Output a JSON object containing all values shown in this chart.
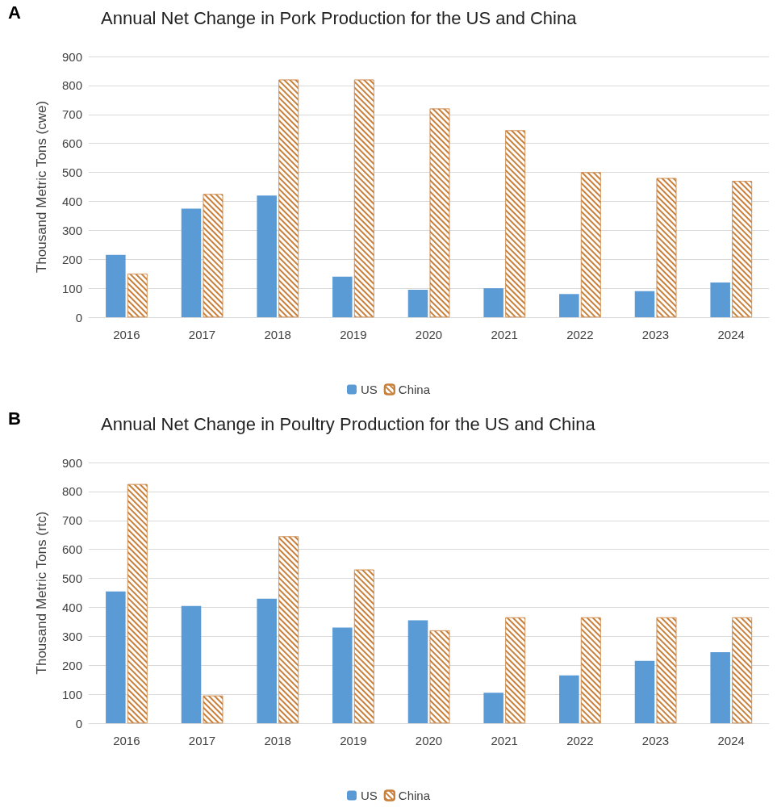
{
  "chart_data": [
    {
      "type": "bar",
      "title": "Annual Net Change in Pork Production for the US and China",
      "ylabel": "Thousand Metric Tons (cwe)",
      "annotations": [
        "A"
      ],
      "categories": [
        "2016",
        "2017",
        "2018",
        "2019",
        "2020",
        "2021",
        "2022",
        "2023",
        "2024"
      ],
      "series": [
        {
          "name": "US",
          "color": "#5b9bd5",
          "values": [
            215,
            375,
            420,
            140,
            95,
            100,
            80,
            90,
            120
          ]
        },
        {
          "name": "China",
          "color": "#c87f3a",
          "values": [
            150,
            425,
            820,
            820,
            720,
            645,
            500,
            480,
            470
          ]
        }
      ],
      "ylim": [
        0,
        900
      ],
      "yticks": [
        0,
        100,
        200,
        300,
        400,
        500,
        600,
        700,
        800,
        900
      ],
      "grid": "y",
      "legend": "bottom"
    },
    {
      "type": "bar",
      "title": "Annual Net Change in Poultry Production for the US and China",
      "ylabel": "Thousand Metric Tons (rtc)",
      "annotations": [
        "B"
      ],
      "categories": [
        "2016",
        "2017",
        "2018",
        "2019",
        "2020",
        "2021",
        "2022",
        "2023",
        "2024"
      ],
      "series": [
        {
          "name": "US",
          "color": "#5b9bd5",
          "values": [
            455,
            405,
            430,
            330,
            355,
            105,
            165,
            215,
            245
          ]
        },
        {
          "name": "China",
          "color": "#c87f3a",
          "values": [
            825,
            95,
            645,
            530,
            320,
            365,
            365,
            365,
            365
          ]
        }
      ],
      "ylim": [
        0,
        900
      ],
      "yticks": [
        0,
        100,
        200,
        300,
        400,
        500,
        600,
        700,
        800,
        900
      ],
      "grid": "y",
      "legend": "bottom"
    }
  ]
}
